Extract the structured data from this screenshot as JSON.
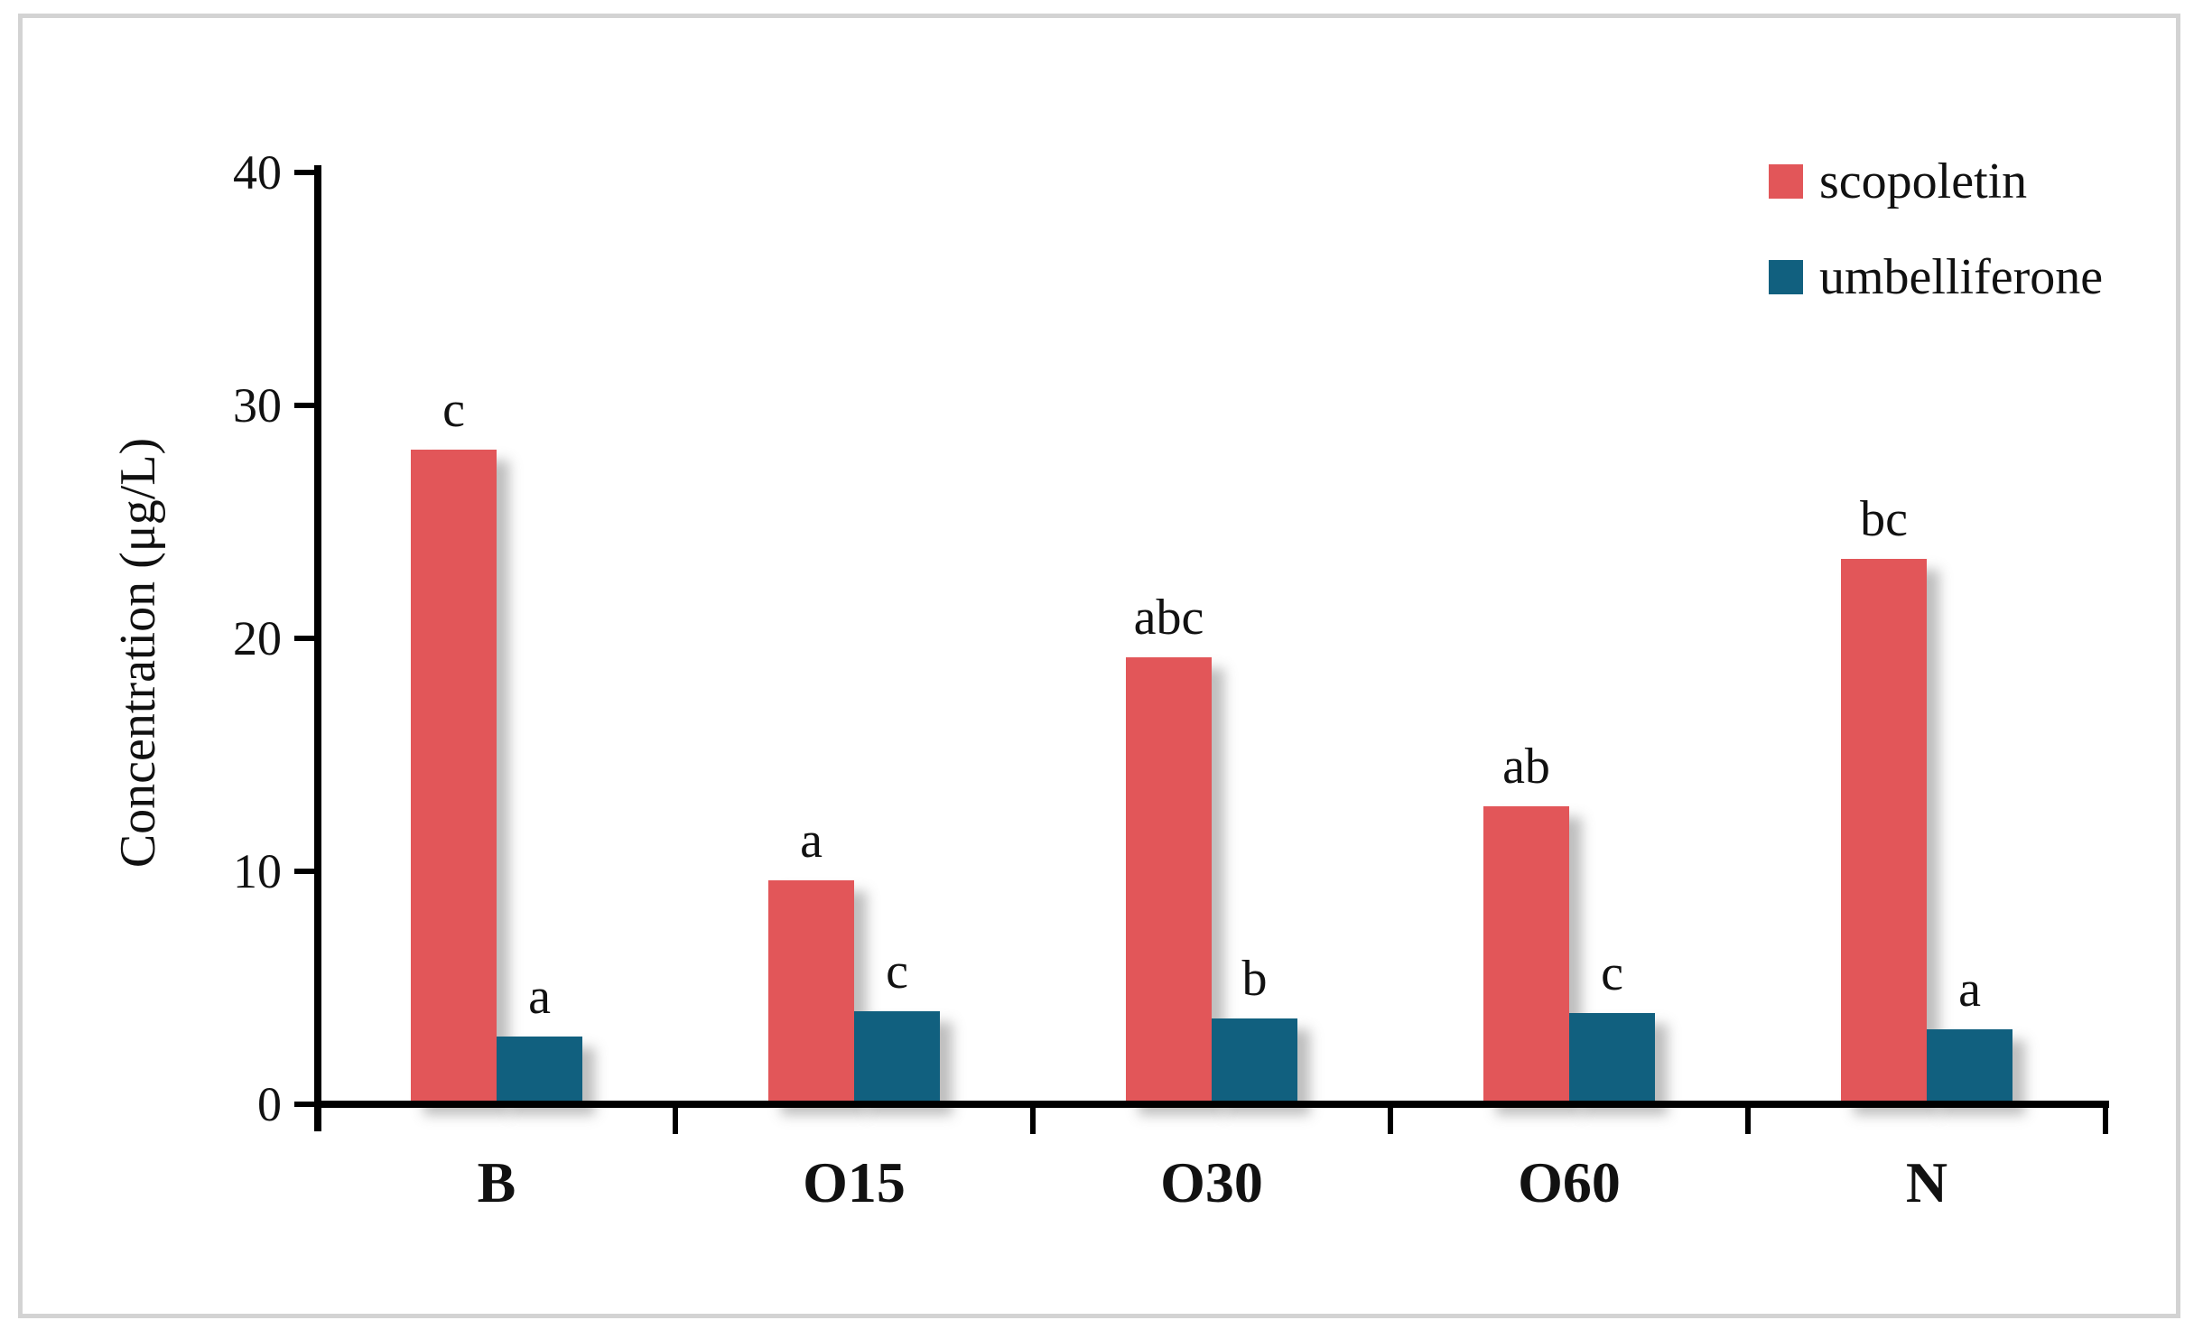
{
  "figure": {
    "background": "#ffffff",
    "border_color": "#d3d3d3"
  },
  "chart_data": {
    "type": "bar",
    "title": "",
    "categories": [
      "B",
      "O15",
      "O30",
      "O60",
      "N"
    ],
    "series": [
      {
        "name": "scopoletin",
        "color": "#e25659",
        "values": [
          28.1,
          9.6,
          19.2,
          12.8,
          23.4
        ],
        "sig_labels": [
          "c",
          "a",
          "abc",
          "ab",
          "bc"
        ]
      },
      {
        "name": "umbelliferone",
        "color": "#11607f",
        "values": [
          2.9,
          4.0,
          3.7,
          3.9,
          3.2
        ],
        "sig_labels": [
          "a",
          "c",
          "b",
          "c",
          "a"
        ]
      }
    ],
    "ylabel": "Concentration (μg/L)",
    "xlabel": "",
    "yticks": [
      0,
      10,
      20,
      30,
      40
    ],
    "ylim": [
      0,
      40
    ],
    "grid": false,
    "legend_position": "top-right",
    "axis_color": "#000000",
    "text_color": "#111111"
  }
}
